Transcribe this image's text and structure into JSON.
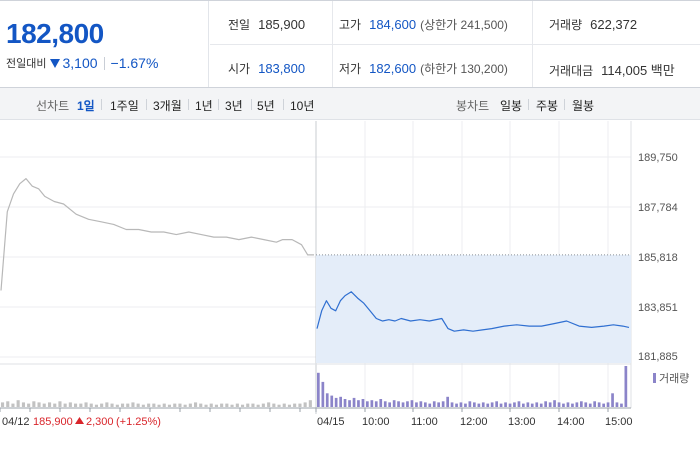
{
  "quote": {
    "current_price": "182,800",
    "change_label": "전일대비",
    "change_amount": "3,100",
    "change_rate": "−1.67%",
    "stats": {
      "prev_close_label": "전일",
      "prev_close": "185,900",
      "high_label": "고가",
      "high": "184,600",
      "upper_limit": "(상한가 241,500)",
      "volume_label": "거래량",
      "volume": "622,372",
      "open_label": "시가",
      "open": "183,800",
      "low_label": "저가",
      "low": "182,600",
      "lower_limit": "(하한가 130,200)",
      "amount_label": "거래대금",
      "amount": "114,005 백만"
    }
  },
  "toolbar": {
    "line_chart_label": "선차트",
    "periods": [
      "1일",
      "1주일",
      "3개월",
      "1년",
      "3년",
      "5년",
      "10년"
    ],
    "active_period": "1일",
    "candle_chart_label": "봉차트",
    "candles": [
      "일봉",
      "주봉",
      "월봉"
    ]
  },
  "colors": {
    "down": "#1356c4",
    "up": "#d9252b",
    "today_line": "#2f6fd1",
    "today_fill": "#e4edf9",
    "prev_line": "#b8b8b8",
    "volume_today": "#8b84c9",
    "volume_prev": "#c2c2c2"
  },
  "chart_data": {
    "type": "line",
    "y_ticks": [
      "189,750",
      "187,784",
      "185,818",
      "183,851",
      "181,885"
    ],
    "ylim": [
      181885,
      189750
    ],
    "reference_price": 185900,
    "volume_legend": "거래량",
    "x_labels": {
      "prev_day": "04/12",
      "today": "04/15",
      "times": [
        "10:00",
        "11:00",
        "12:00",
        "13:00",
        "14:00",
        "15:00"
      ]
    },
    "prev_day_summary": {
      "close": "185,900",
      "change": "2,300",
      "rate": "(+1.25%)"
    },
    "series": [
      {
        "name": "04/12",
        "x": [
          0,
          0.02,
          0.04,
          0.06,
          0.08,
          0.1,
          0.12,
          0.14,
          0.17,
          0.2,
          0.24,
          0.28,
          0.32,
          0.36,
          0.4,
          0.44,
          0.48,
          0.52,
          0.56,
          0.6,
          0.64,
          0.68,
          0.72,
          0.76,
          0.8,
          0.84,
          0.88,
          0.9,
          0.93,
          0.96,
          0.98,
          1.0
        ],
        "values": [
          184500,
          187600,
          188300,
          188700,
          188900,
          188600,
          188500,
          188200,
          188000,
          187900,
          187500,
          187300,
          187200,
          187100,
          186900,
          186900,
          186800,
          186800,
          186700,
          186800,
          186700,
          186600,
          186600,
          186500,
          186600,
          186500,
          186400,
          186500,
          186500,
          186300,
          185900,
          185900
        ]
      },
      {
        "name": "04/15",
        "x": [
          0,
          0.015,
          0.03,
          0.045,
          0.06,
          0.075,
          0.09,
          0.11,
          0.13,
          0.15,
          0.17,
          0.19,
          0.21,
          0.23,
          0.25,
          0.27,
          0.3,
          0.33,
          0.36,
          0.4,
          0.42,
          0.44,
          0.47,
          0.5,
          0.53,
          0.56,
          0.6,
          0.64,
          0.68,
          0.72,
          0.76,
          0.8,
          0.84,
          0.88,
          0.92,
          0.95,
          0.98,
          1.0
        ],
        "values": [
          183000,
          183700,
          184100,
          183800,
          183700,
          184100,
          184300,
          184450,
          184200,
          184000,
          183700,
          183400,
          183300,
          183350,
          183300,
          183400,
          183300,
          183350,
          183300,
          183400,
          183000,
          182900,
          182950,
          182900,
          182950,
          183000,
          183100,
          183150,
          183100,
          183100,
          183200,
          183300,
          183100,
          183050,
          183100,
          183150,
          183100,
          183050
        ]
      }
    ],
    "volume_prev": [
      4,
      5,
      3,
      6,
      4,
      3,
      5,
      4,
      3,
      4,
      3,
      5,
      3,
      4,
      3,
      3,
      4,
      3,
      2,
      3,
      4,
      3,
      2,
      3,
      3,
      4,
      3,
      2,
      3,
      3,
      2,
      3,
      2,
      3,
      3,
      2,
      3,
      4,
      3,
      2,
      3,
      2,
      3,
      3,
      2,
      3,
      2,
      3,
      3,
      2,
      3,
      4,
      3,
      2,
      3,
      2,
      3,
      3,
      4,
      6
    ],
    "volume_today": [
      30,
      22,
      12,
      10,
      8,
      9,
      7,
      6,
      8,
      6,
      7,
      5,
      6,
      5,
      7,
      5,
      4,
      6,
      5,
      4,
      5,
      6,
      4,
      5,
      4,
      3,
      5,
      4,
      5,
      9,
      4,
      3,
      4,
      3,
      5,
      4,
      3,
      4,
      3,
      4,
      5,
      3,
      4,
      3,
      4,
      5,
      3,
      4,
      3,
      4,
      3,
      5,
      4,
      6,
      4,
      3,
      4,
      3,
      4,
      5,
      4,
      3,
      5,
      4,
      3,
      4,
      12,
      4,
      3,
      36
    ]
  }
}
